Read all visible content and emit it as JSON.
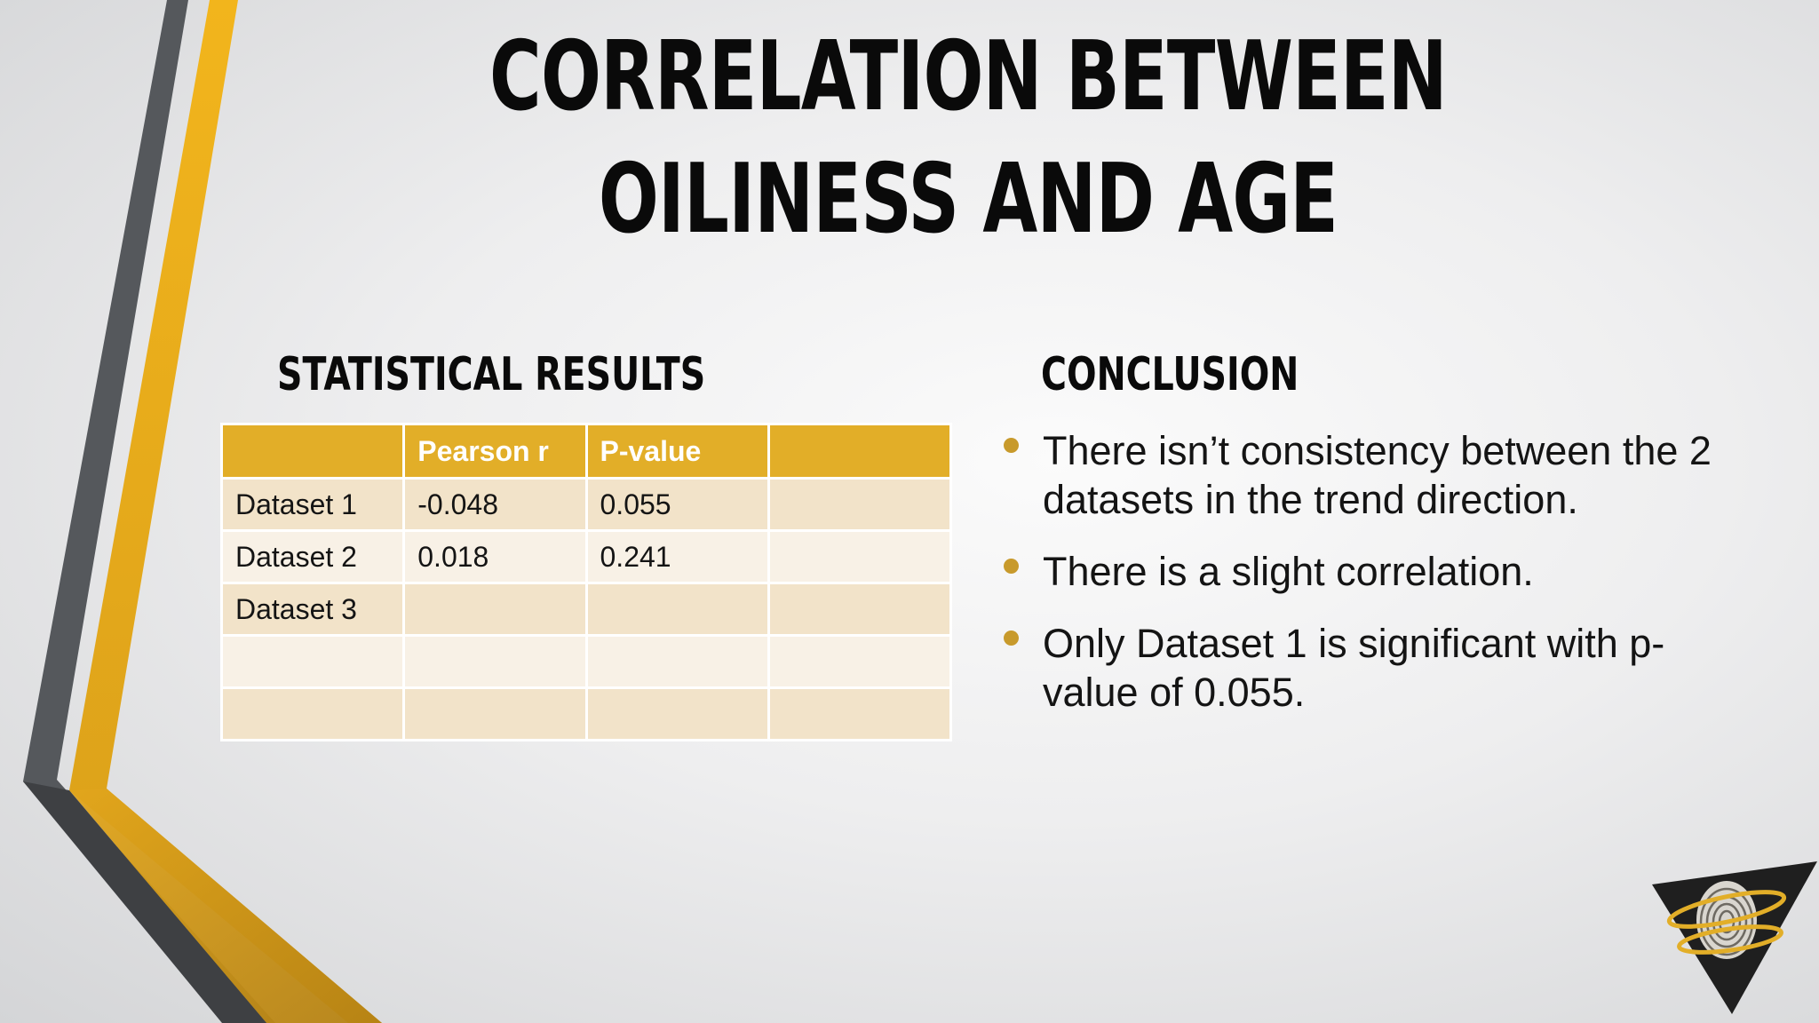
{
  "slide": {
    "title": "CORRELATION BETWEEN OILINESS AND AGE",
    "left_heading": "STATISTICAL RESULTS",
    "right_heading": "CONCLUSION"
  },
  "table": {
    "headers": [
      "",
      "Pearson r",
      "P-value",
      ""
    ],
    "rows": [
      [
        "Dataset 1",
        "-0.048",
        "0.055",
        ""
      ],
      [
        "Dataset 2",
        "0.018",
        "0.241",
        ""
      ],
      [
        "Dataset 3",
        "",
        "",
        ""
      ],
      [
        "",
        "",
        "",
        ""
      ],
      [
        "",
        "",
        "",
        ""
      ]
    ]
  },
  "conclusion": {
    "bullets": [
      "There isn’t consistency between the 2 datasets in the trend direction.",
      "There is a slight correlation.",
      "Only Dataset 1 is significant with p-value of 0.055."
    ]
  },
  "colors": {
    "accent_gold": "#e2ae28",
    "dark_gray": "#55585c",
    "bullet": "#c89a2c"
  },
  "icons": {
    "logo": "fingerprint-triangle-logo"
  }
}
